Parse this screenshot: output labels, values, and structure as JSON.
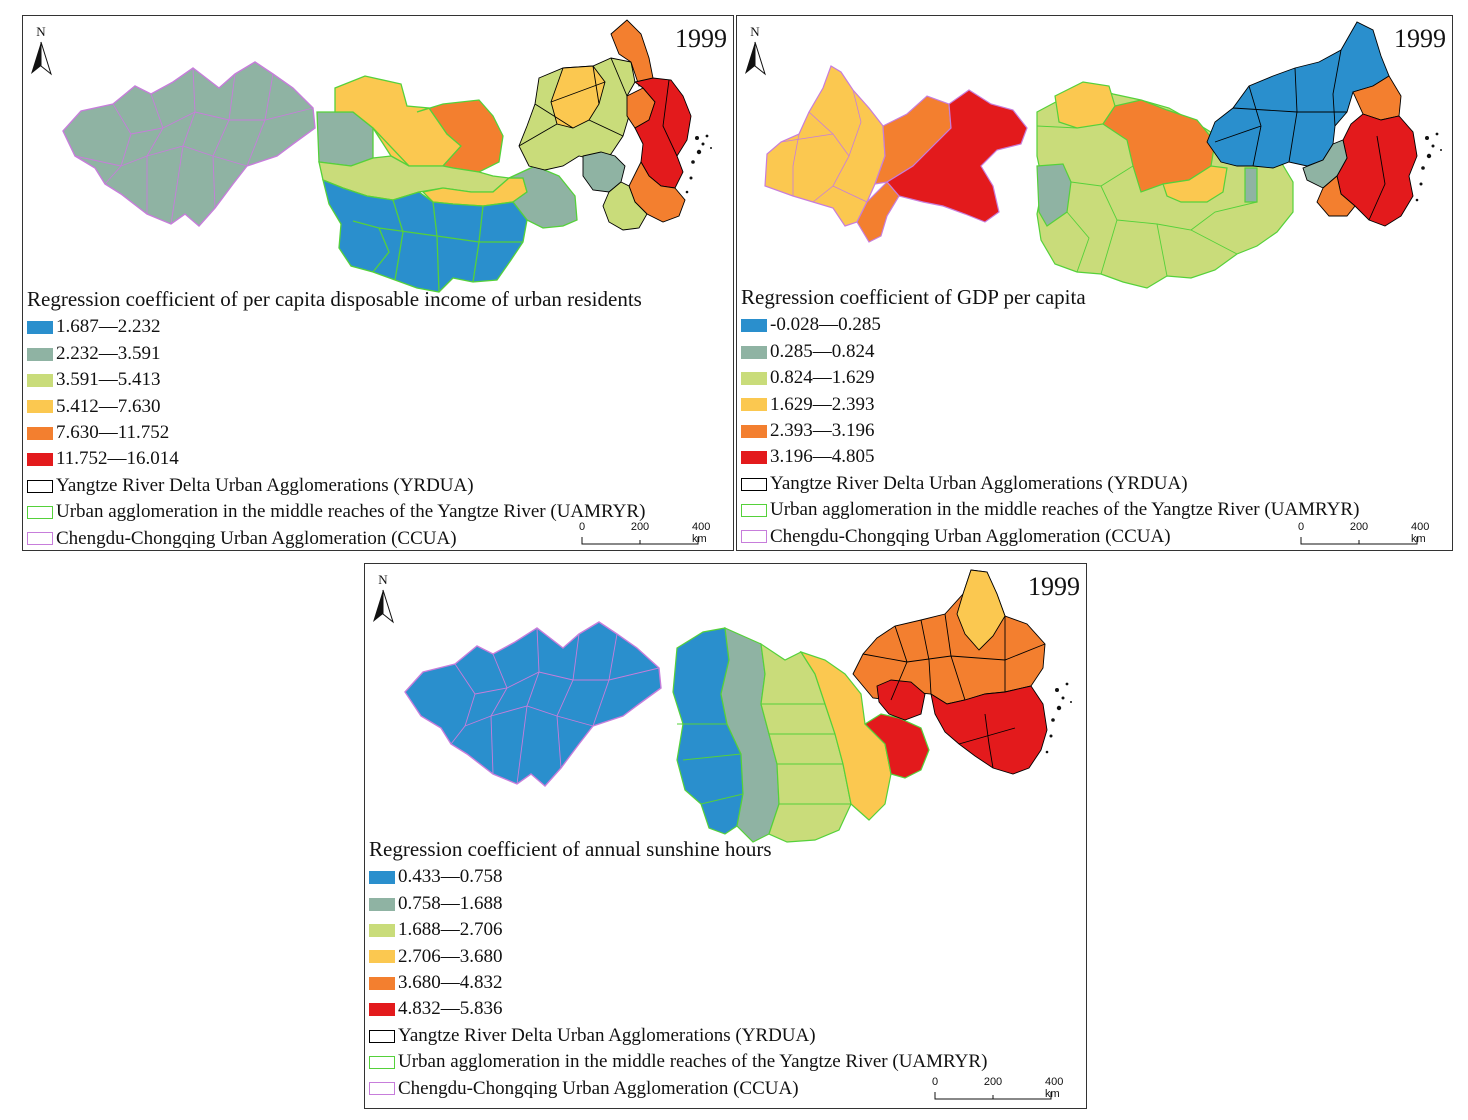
{
  "colors": {
    "class1": "#2a8fcd",
    "class2": "#8fb3a3",
    "class3": "#c9dc7a",
    "class4": "#fbc850",
    "class5": "#f37f2f",
    "class6": "#e31a1c",
    "yrdua_border": "#000000",
    "uamryr_border": "#55d13a",
    "ccua_border": "#c77ddb"
  },
  "boundary_legend": [
    {
      "label": "Yangtze River Delta Urban Agglomerations (YRDUA)",
      "color": "#000000"
    },
    {
      "label": "Urban agglomeration in the middle reaches of the Yangtze River (UAMRYR)",
      "color": "#55d13a"
    },
    {
      "label": "Chengdu-Chongqing Urban Agglomeration (CCUA)",
      "color": "#c77ddb"
    }
  ],
  "scale": {
    "ticks": [
      "0",
      "200",
      "400 km"
    ]
  },
  "north_label": "N",
  "panels": [
    {
      "year": "1999",
      "title": "Regression coefficient of per capita disposable income of urban residents",
      "classes": [
        "1.687—2.232",
        "2.232—3.591",
        "3.591—5.413",
        "5.412—7.630",
        "7.630—11.752",
        "11.752—16.014"
      ],
      "regions": {
        "ccua": [
          "class2"
        ],
        "uamryr": [
          "class2",
          "class4",
          "class5",
          "class3",
          "class1"
        ],
        "yrdua": [
          "class3",
          "class4",
          "class5",
          "class6",
          "class2"
        ]
      }
    },
    {
      "year": "1999",
      "title": "Regression coefficient of GDP per capita",
      "classes": [
        "-0.028—0.285",
        "0.285—0.824",
        "0.824—1.629",
        "1.629—2.393",
        "2.393—3.196",
        "3.196—4.805"
      ],
      "regions": {
        "ccua": [
          "class4",
          "class5",
          "class6"
        ],
        "uamryr": [
          "class3",
          "class4",
          "class5",
          "class2"
        ],
        "yrdua": [
          "class1",
          "class2",
          "class5",
          "class6"
        ]
      }
    },
    {
      "year": "1999",
      "title": "Regression coefficient of annual sunshine hours",
      "classes": [
        "0.433—0.758",
        "0.758—1.688",
        "1.688—2.706",
        "2.706—3.680",
        "3.680—4.832",
        "4.832—5.836"
      ],
      "regions": {
        "ccua": [
          "class1"
        ],
        "uamryr": [
          "class1",
          "class2",
          "class3",
          "class4",
          "class6"
        ],
        "yrdua": [
          "class5",
          "class4",
          "class6"
        ]
      }
    }
  ]
}
